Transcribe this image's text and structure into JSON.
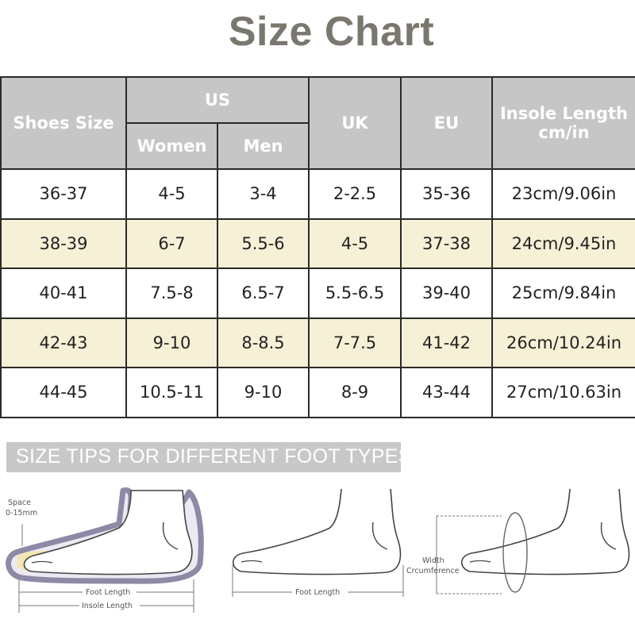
{
  "title": "Size Chart",
  "table": {
    "headers": {
      "shoes_size": "Shoes Size",
      "us": "US",
      "women": "Women",
      "men": "Men",
      "uk": "UK",
      "eu": "EU",
      "insole_line1": "Insole Length",
      "insole_line2": "cm/in"
    },
    "rows": [
      [
        "36-37",
        "4-5",
        "3-4",
        "2-2.5",
        "35-36",
        "23cm/9.06in"
      ],
      [
        "38-39",
        "6-7",
        "5.5-6",
        "4-5",
        "37-38",
        "24cm/9.45in"
      ],
      [
        "40-41",
        "7.5-8",
        "6.5-7",
        "5.5-6.5",
        "39-40",
        "25cm/9.84in"
      ],
      [
        "42-43",
        "9-10",
        "8-8.5",
        "7-7.5",
        "41-42",
        "26cm/10.24in"
      ],
      [
        "44-45",
        "10.5-11",
        "9-10",
        "8-9",
        "43-44",
        "27cm/10.63in"
      ]
    ]
  },
  "tips": {
    "banner": "SIZE TIPS FOR DIFFERENT FOOT TYPES",
    "space_label": "Space",
    "space_value": "0-15mm",
    "foot_length": "Foot Length",
    "insole_length": "Insole Length",
    "foot_length_2": "Foot Length",
    "width_label": "Width",
    "circumference_label": "Crcumference"
  },
  "colors": {
    "title": "#7a776e",
    "header_bg": "#c6c6c6",
    "row_highlight": "#f6f0d6",
    "insole_outline": "#8e89a6",
    "insole_fill": "#f3e6b0"
  }
}
